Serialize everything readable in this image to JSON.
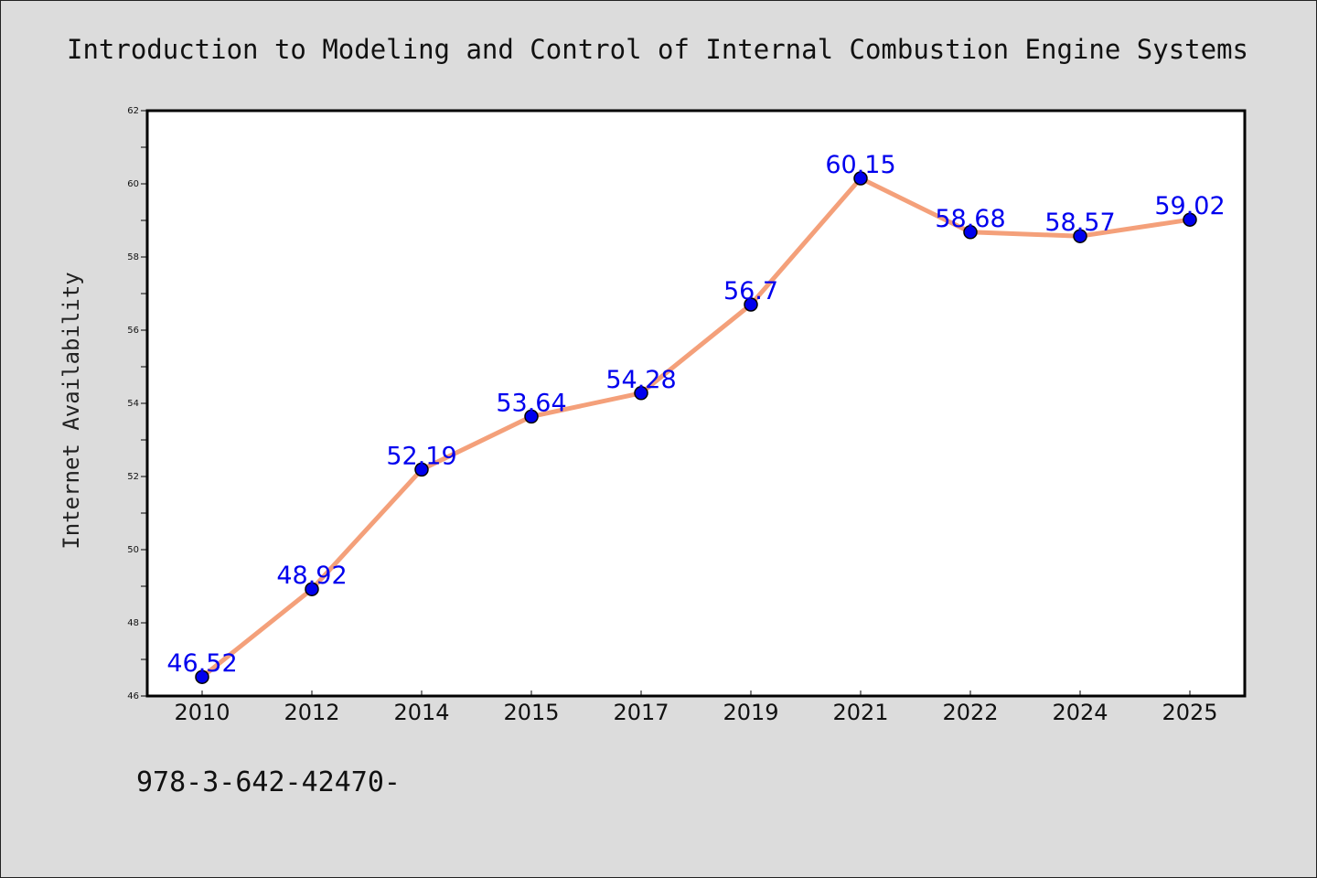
{
  "chart_data": {
    "type": "line",
    "title": "Introduction to Modeling and Control of Internal Combustion Engine Systems",
    "xlabel": "",
    "ylabel": "Internet Availability",
    "categories": [
      "2010",
      "2012",
      "2014",
      "2015",
      "2017",
      "2019",
      "2021",
      "2022",
      "2024",
      "2025"
    ],
    "series": [
      {
        "values": [
          46.52,
          48.92,
          52.19,
          53.64,
          54.28,
          56.7,
          60.15,
          58.68,
          58.57,
          59.02
        ],
        "data_labels": [
          "46.52",
          "48.92",
          "52.19",
          "53.64",
          "54.28",
          "56.7",
          "60.15",
          "58.68",
          "58.57",
          "59.02"
        ]
      }
    ],
    "ylim": [
      46,
      62
    ],
    "y_ticks": [
      46,
      48,
      50,
      52,
      54,
      56,
      58,
      60,
      62
    ],
    "grid": false,
    "legend": "none",
    "colors": {
      "line": "#f4a07a",
      "marker": "#0000ee",
      "label": "#0000ee",
      "background": "#dcdcdc",
      "plot_background": "#ffffff"
    }
  },
  "footer": {
    "text": "978-3-642-42470-"
  }
}
